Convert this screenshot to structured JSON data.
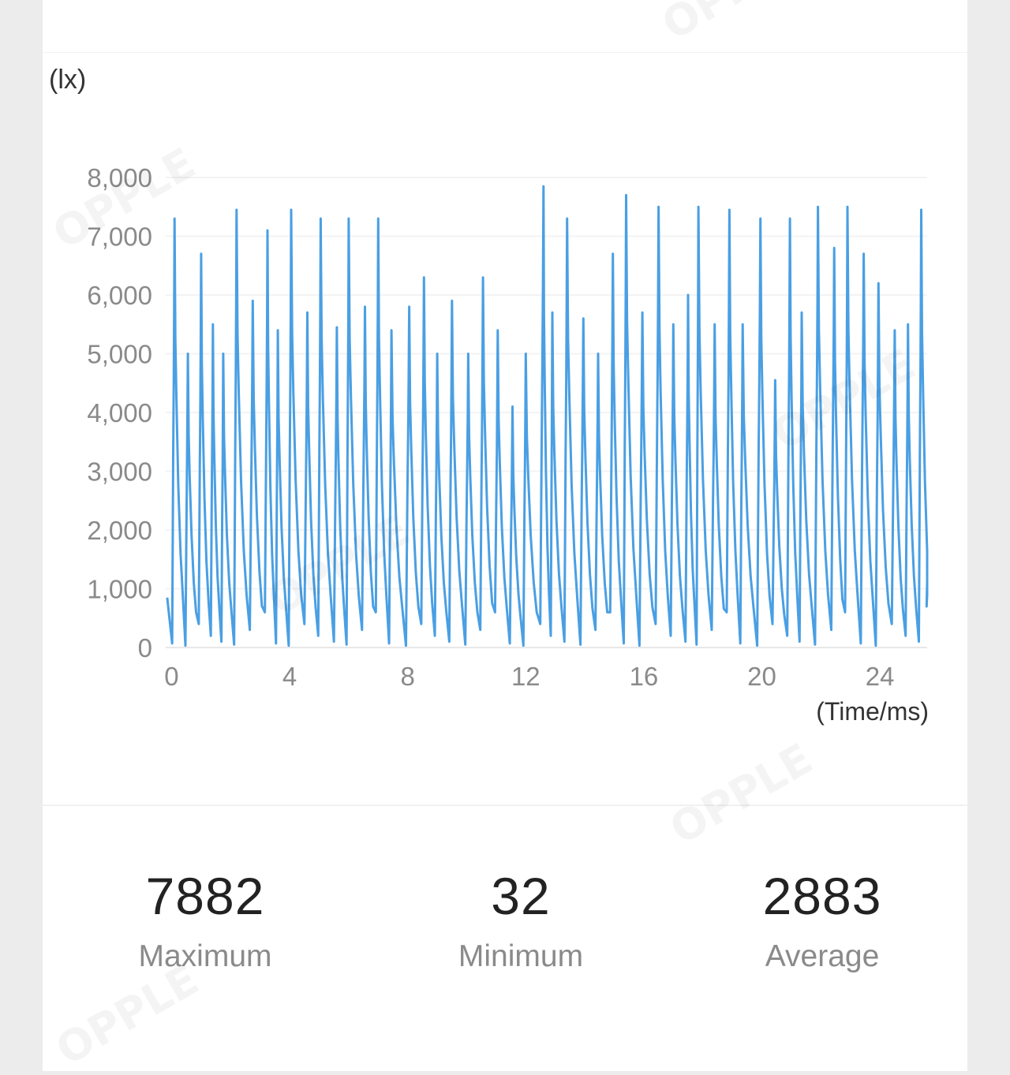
{
  "chart": {
    "unit_label": "(lx)",
    "x_axis_title": "(Time/ms)",
    "line_color": "#4a9fe3"
  },
  "chart_data": {
    "type": "line",
    "title": "",
    "xlabel": "(Time/ms)",
    "ylabel": "(lx)",
    "xlim": [
      -0.2,
      25.6
    ],
    "ylim": [
      0,
      8000
    ],
    "x_ticks": [
      0,
      4,
      8,
      12,
      16,
      20,
      24
    ],
    "y_ticks": [
      0,
      1000,
      2000,
      3000,
      4000,
      5000,
      6000,
      7000,
      8000
    ],
    "x_tick_labels": [
      "0",
      "4",
      "8",
      "12",
      "16",
      "20",
      "24"
    ],
    "y_tick_labels": [
      "0",
      "1,000",
      "2,000",
      "3,000",
      "4,000",
      "5,000",
      "6,000",
      "7,000",
      "8,000"
    ],
    "grid": true,
    "legend": "none",
    "series": [
      {
        "peaks_x": [
          0.1,
          0.55,
          1.0,
          1.4,
          1.75,
          2.2,
          2.75,
          3.25,
          3.6,
          4.05,
          4.6,
          5.05,
          5.6,
          6.0,
          6.55,
          7.0,
          7.45,
          8.05,
          8.55,
          9.0,
          9.5,
          10.05,
          10.55,
          11.05,
          11.55,
          12.0,
          12.6,
          12.9,
          13.4,
          13.95,
          14.45,
          14.95,
          15.4,
          15.95,
          16.5,
          17.0,
          17.5,
          17.85,
          18.4,
          18.9,
          19.35,
          19.95,
          20.45,
          20.95,
          21.35,
          21.9,
          22.45,
          22.9,
          23.45,
          23.95,
          24.5,
          24.95,
          25.4
        ],
        "peak_values": [
          7300,
          5000,
          6700,
          5500,
          5000,
          7450,
          5900,
          7100,
          5400,
          7450,
          5700,
          7300,
          5450,
          7300,
          5800,
          7300,
          5400,
          5800,
          6300,
          5000,
          5900,
          5000,
          6300,
          5400,
          4100,
          5000,
          7850,
          5700,
          7300,
          5600,
          5000,
          6700,
          7700,
          5700,
          7500,
          5500,
          6000,
          7500,
          5500,
          7450,
          5500,
          7300,
          4550,
          7300,
          5700,
          7500,
          6800,
          7500,
          6700,
          6200,
          5400,
          5500,
          7450
        ],
        "troughs": [
          70,
          32,
          400,
          200,
          100,
          50,
          300,
          600
        ]
      }
    ]
  },
  "stats": {
    "maximum": {
      "value": "7882",
      "label": "Maximum"
    },
    "minimum": {
      "value": "32",
      "label": "Minimum"
    },
    "average": {
      "value": "2883",
      "label": "Average"
    }
  },
  "watermark": "OPPLE"
}
